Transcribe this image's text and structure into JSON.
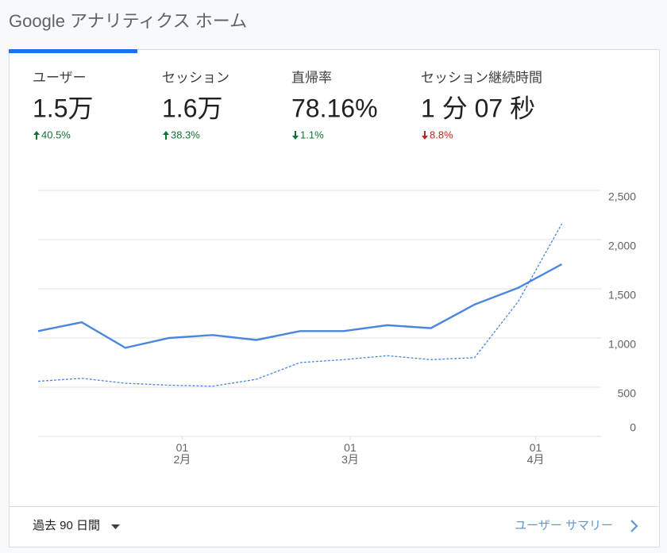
{
  "header": {
    "title": "Google アナリティクス ホーム"
  },
  "metrics": [
    {
      "label": "ユーザー",
      "value": "1.5万",
      "change": "40.5%",
      "direction": "up",
      "color": "#137333"
    },
    {
      "label": "セッション",
      "value": "1.6万",
      "change": "38.3%",
      "direction": "up",
      "color": "#137333"
    },
    {
      "label": "直帰率",
      "value": "78.16%",
      "change": "1.1%",
      "direction": "down",
      "color": "#137333"
    },
    {
      "label": "セッション継続時間",
      "value": "1 分 07 秒",
      "change": "8.8%",
      "direction": "down",
      "color": "#c5221f"
    }
  ],
  "chart_data": {
    "type": "line",
    "categories": [
      null,
      null,
      null,
      null,
      null,
      null,
      null,
      null,
      null,
      null,
      null,
      null,
      null
    ],
    "series": [
      {
        "color": "#4a86e0",
        "dashed": false,
        "values": [
          1070,
          1160,
          900,
          1000,
          1030,
          980,
          1070,
          1070,
          1130,
          1100,
          1340,
          1510,
          1750
        ]
      },
      {
        "color": "#4a86e0",
        "dashed": true,
        "values": [
          560,
          590,
          540,
          520,
          510,
          580,
          750,
          780,
          820,
          780,
          800,
          1370,
          2160
        ]
      }
    ],
    "xlim": [
      0,
      12.9
    ],
    "xticks": [
      {
        "value": 3.3,
        "label": "01 2月"
      },
      {
        "value": 7.15,
        "label": "01 3月"
      },
      {
        "value": 11.4,
        "label": "01 4月"
      }
    ],
    "ylim": [
      0,
      2500
    ],
    "yticks": [
      0,
      500,
      {
        "value": 1000,
        "label": "1,000"
      },
      {
        "value": 1500,
        "label": "1,500"
      },
      {
        "value": 2000,
        "label": "2,000"
      },
      {
        "value": 2500,
        "label": "2,500"
      }
    ],
    "grid": true
  },
  "footer": {
    "range": "過去 90 日間",
    "link": "ユーザー サマリー"
  }
}
